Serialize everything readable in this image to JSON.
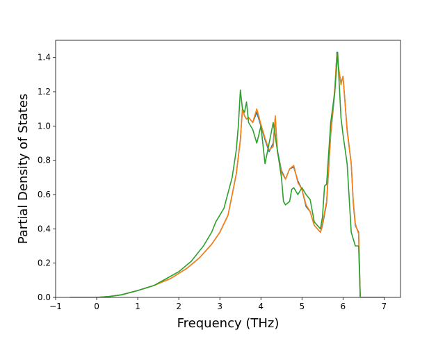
{
  "chart_data": {
    "type": "line",
    "title": "",
    "xlabel": "Frequency (THz)",
    "ylabel": "Partial Density of States",
    "xlim": [
      -1.0,
      7.4
    ],
    "ylim": [
      0.0,
      1.5
    ],
    "xticks": [
      -1,
      0,
      1,
      2,
      3,
      4,
      5,
      6,
      7
    ],
    "xtick_labels": [
      "−1",
      "0",
      "1",
      "2",
      "3",
      "4",
      "5",
      "6",
      "7"
    ],
    "yticks": [
      0.0,
      0.2,
      0.4,
      0.6,
      0.8,
      1.0,
      1.2,
      1.4
    ],
    "ytick_labels": [
      "0.0",
      "0.2",
      "0.4",
      "0.6",
      "0.8",
      "1.0",
      "1.2",
      "1.4"
    ],
    "grid": false,
    "series": [
      {
        "color": "#1f77b4",
        "x": [
          -0.65,
          0.0,
          0.3,
          0.6,
          1.0,
          1.4,
          1.8,
          2.2,
          2.5,
          2.8,
          3.0,
          3.2,
          3.4,
          3.5,
          3.55,
          3.6,
          3.65,
          3.7,
          3.8,
          3.9,
          4.0,
          4.1,
          4.2,
          4.3,
          4.35,
          4.4,
          4.5,
          4.6,
          4.7,
          4.8,
          4.9,
          5.0,
          5.1,
          5.2,
          5.3,
          5.45,
          5.5,
          5.6,
          5.7,
          5.8,
          5.85,
          5.9,
          5.95,
          6.0,
          6.1,
          6.2,
          6.25,
          6.3,
          6.38,
          6.42,
          7.0
        ],
        "y": [
          0.0,
          0.0,
          0.005,
          0.015,
          0.04,
          0.07,
          0.11,
          0.17,
          0.23,
          0.31,
          0.38,
          0.48,
          0.72,
          0.92,
          1.1,
          1.06,
          1.04,
          1.05,
          1.02,
          1.08,
          1.0,
          0.92,
          0.85,
          0.9,
          1.05,
          0.86,
          0.74,
          0.69,
          0.75,
          0.76,
          0.68,
          0.63,
          0.53,
          0.5,
          0.42,
          0.38,
          0.42,
          0.55,
          0.95,
          1.2,
          1.43,
          1.32,
          1.25,
          1.29,
          0.98,
          0.78,
          0.55,
          0.42,
          0.38,
          0.0,
          0.0
        ]
      },
      {
        "color": "#ff7f0e",
        "x": [
          -0.65,
          0.0,
          0.3,
          0.6,
          1.0,
          1.4,
          1.8,
          2.2,
          2.5,
          2.8,
          3.0,
          3.2,
          3.4,
          3.5,
          3.55,
          3.6,
          3.65,
          3.7,
          3.8,
          3.9,
          4.0,
          4.1,
          4.2,
          4.3,
          4.35,
          4.4,
          4.5,
          4.6,
          4.7,
          4.8,
          4.9,
          5.0,
          5.1,
          5.2,
          5.3,
          5.45,
          5.5,
          5.6,
          5.7,
          5.8,
          5.85,
          5.9,
          5.95,
          6.0,
          6.1,
          6.2,
          6.25,
          6.3,
          6.38,
          6.42,
          7.0
        ],
        "y": [
          0.0,
          0.0,
          0.005,
          0.015,
          0.04,
          0.07,
          0.11,
          0.17,
          0.23,
          0.31,
          0.38,
          0.48,
          0.72,
          0.92,
          1.1,
          1.06,
          1.04,
          1.05,
          1.02,
          1.1,
          1.01,
          0.93,
          0.86,
          0.88,
          1.06,
          0.85,
          0.73,
          0.69,
          0.75,
          0.77,
          0.67,
          0.63,
          0.54,
          0.5,
          0.42,
          0.38,
          0.43,
          0.56,
          0.96,
          1.22,
          1.42,
          1.33,
          1.24,
          1.29,
          0.97,
          0.78,
          0.56,
          0.43,
          0.37,
          0.0,
          0.0
        ]
      },
      {
        "color": "#2ca02c",
        "x": [
          -0.65,
          0.0,
          0.3,
          0.6,
          1.0,
          1.4,
          1.7,
          2.0,
          2.3,
          2.6,
          2.8,
          2.9,
          3.1,
          3.3,
          3.4,
          3.45,
          3.5,
          3.55,
          3.6,
          3.65,
          3.7,
          3.8,
          3.9,
          3.95,
          4.0,
          4.1,
          4.2,
          4.3,
          4.4,
          4.5,
          4.55,
          4.6,
          4.7,
          4.75,
          4.8,
          4.9,
          5.0,
          5.1,
          5.2,
          5.3,
          5.45,
          5.5,
          5.55,
          5.6,
          5.7,
          5.8,
          5.87,
          5.9,
          5.95,
          6.0,
          6.1,
          6.2,
          6.3,
          6.38,
          6.42,
          7.0
        ],
        "y": [
          0.0,
          0.0,
          0.005,
          0.015,
          0.04,
          0.07,
          0.11,
          0.15,
          0.21,
          0.3,
          0.38,
          0.44,
          0.52,
          0.7,
          0.86,
          1.0,
          1.21,
          1.1,
          1.08,
          1.14,
          1.02,
          0.98,
          0.9,
          0.95,
          1.0,
          0.78,
          0.9,
          1.02,
          0.86,
          0.7,
          0.56,
          0.54,
          0.56,
          0.63,
          0.64,
          0.6,
          0.64,
          0.6,
          0.57,
          0.44,
          0.4,
          0.47,
          0.65,
          0.66,
          1.02,
          1.2,
          1.43,
          1.28,
          1.05,
          0.95,
          0.78,
          0.38,
          0.3,
          0.3,
          0.0,
          0.0
        ]
      }
    ]
  }
}
